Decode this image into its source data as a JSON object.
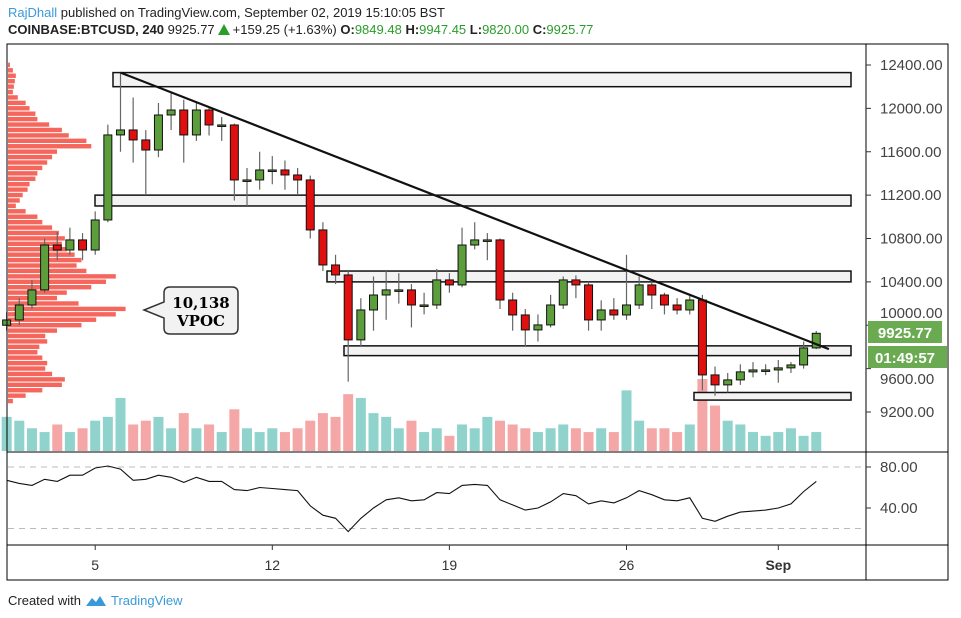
{
  "header": {
    "author": "RajDhall",
    "published_text": "published on TradingView.com, September 02, 2019 15:10:05 BST",
    "symbol": "COINBASE:BTCUSD, 240",
    "last_price": "9925.77",
    "change": "+159.25 (+1.63%)",
    "open_label": "O:",
    "open": "9849.48",
    "high_label": "H:",
    "high": "9947.45",
    "low_label": "L:",
    "low": "9820.00",
    "close_label": "C:",
    "close": "9925.77"
  },
  "footer": {
    "created_with": "Created with",
    "brand": "TradingView"
  },
  "annotation": {
    "value": "10,138",
    "label": "VPOC"
  },
  "price_badge": {
    "price": "9925.77",
    "countdown": "01:49:57"
  },
  "colors": {
    "up": "#5c9e3b",
    "down": "#e01010",
    "vol_up": "#8fd3cc",
    "vol_down": "#f5a7a7",
    "profile": "#f4564a",
    "badge": "#6aaa50",
    "brand": "#3a9ad9"
  },
  "chart_data": [
    {
      "type": "candlestick",
      "title": "",
      "y_ticks": [
        "12400.00",
        "12000.00",
        "11600.00",
        "11200.00",
        "10800.00",
        "10400.00",
        "10000.00",
        "9600.00",
        "9200.00"
      ],
      "x_ticks": [
        "5",
        "12",
        "19",
        "26",
        "Sep"
      ],
      "ylim": [
        9200,
        12400
      ],
      "grid": false,
      "candles_fields": [
        "time",
        "open",
        "high",
        "low",
        "close"
      ],
      "candles": [
        [
          "Aug 01 12:00",
          10000,
          10120,
          9950,
          10049
        ],
        [
          "Aug 02 00:00",
          10049,
          10250,
          10000,
          10187
        ],
        [
          "Aug 02 12:00",
          10187,
          10420,
          10150,
          10326
        ],
        [
          "Aug 03 00:00",
          10326,
          10800,
          10300,
          10740
        ],
        [
          "Aug 03 12:00",
          10740,
          10860,
          10600,
          10694
        ],
        [
          "Aug 04 00:00",
          10694,
          10900,
          10650,
          10787
        ],
        [
          "Aug 04 12:00",
          10787,
          10850,
          10600,
          10694
        ],
        [
          "Aug 05 00:00",
          10694,
          11050,
          10650,
          10971
        ],
        [
          "Aug 05 12:00",
          10971,
          11850,
          10950,
          11755
        ],
        [
          "Aug 06 00:00",
          11755,
          12330,
          11600,
          11801
        ],
        [
          "Aug 06 12:00",
          11801,
          12100,
          11500,
          11709
        ],
        [
          "Aug 07 00:00",
          11709,
          11800,
          11200,
          11616
        ],
        [
          "Aug 07 12:00",
          11616,
          12050,
          11550,
          11939
        ],
        [
          "Aug 08 00:00",
          11939,
          12150,
          11800,
          11985
        ],
        [
          "Aug 08 12:00",
          11985,
          12080,
          11500,
          11755
        ],
        [
          "Aug 09 00:00",
          11755,
          12050,
          11700,
          11985
        ],
        [
          "Aug 09 12:00",
          11985,
          12010,
          11750,
          11847
        ],
        [
          "Aug 10 00:00",
          11847,
          11920,
          11700,
          11847
        ],
        [
          "Aug 10 12:00",
          11847,
          11860,
          11150,
          11340
        ],
        [
          "Aug 11 00:00",
          11340,
          11450,
          11100,
          11340
        ],
        [
          "Aug 11 12:00",
          11340,
          11600,
          11250,
          11432
        ],
        [
          "Aug 12 00:00",
          11432,
          11560,
          11300,
          11432
        ],
        [
          "Aug 12 12:00",
          11432,
          11520,
          11250,
          11386
        ],
        [
          "Aug 13 00:00",
          11386,
          11450,
          11200,
          11340
        ],
        [
          "Aug 13 12:00",
          11340,
          11380,
          10800,
          10879
        ],
        [
          "Aug 14 00:00",
          10879,
          10950,
          10500,
          10556
        ],
        [
          "Aug 14 12:00",
          10556,
          10650,
          10380,
          10464
        ],
        [
          "Aug 15 00:00",
          10464,
          10500,
          9480,
          9865
        ],
        [
          "Aug 15 12:00",
          9865,
          10250,
          9800,
          10141
        ],
        [
          "Aug 16 00:00",
          10141,
          10450,
          9950,
          10279
        ],
        [
          "Aug 16 12:00",
          10279,
          10500,
          10050,
          10326
        ],
        [
          "Aug 17 00:00",
          10326,
          10480,
          10200,
          10326
        ],
        [
          "Aug 17 12:00",
          10326,
          10380,
          9980,
          10187
        ],
        [
          "Aug 18 00:00",
          10187,
          10300,
          10100,
          10187
        ],
        [
          "Aug 18 12:00",
          10187,
          10520,
          10150,
          10418
        ],
        [
          "Aug 19 00:00",
          10418,
          10480,
          10300,
          10372
        ],
        [
          "Aug 19 12:00",
          10372,
          10900,
          10350,
          10740
        ],
        [
          "Aug 20 00:00",
          10740,
          10950,
          10700,
          10787
        ],
        [
          "Aug 20 12:00",
          10787,
          10850,
          10600,
          10787
        ],
        [
          "Aug 21 00:00",
          10787,
          10800,
          10150,
          10233
        ],
        [
          "Aug 21 12:00",
          10233,
          10300,
          9950,
          10095
        ],
        [
          "Aug 22 00:00",
          10095,
          10150,
          9800,
          9957
        ],
        [
          "Aug 22 12:00",
          9957,
          10100,
          9850,
          10003
        ],
        [
          "Aug 23 00:00",
          10003,
          10280,
          9980,
          10187
        ],
        [
          "Aug 23 12:00",
          10187,
          10450,
          10150,
          10418
        ],
        [
          "Aug 24 00:00",
          10418,
          10460,
          10250,
          10372
        ],
        [
          "Aug 24 12:00",
          10372,
          10400,
          9950,
          10049
        ],
        [
          "Aug 25 00:00",
          10049,
          10230,
          9950,
          10141
        ],
        [
          "Aug 25 12:00",
          10141,
          10250,
          10050,
          10095
        ],
        [
          "Aug 26 00:00",
          10095,
          10650,
          10050,
          10187
        ],
        [
          "Aug 26 12:00",
          10187,
          10450,
          10150,
          10372
        ],
        [
          "Aug 27 00:00",
          10372,
          10420,
          10150,
          10279
        ],
        [
          "Aug 27 12:00",
          10279,
          10300,
          10100,
          10187
        ],
        [
          "Aug 28 00:00",
          10187,
          10250,
          10100,
          10141
        ],
        [
          "Aug 28 12:00",
          10141,
          10290,
          10100,
          10233
        ],
        [
          "Aug 29 00:00",
          10233,
          10280,
          9400,
          9542
        ],
        [
          "Aug 29 12:00",
          9542,
          9620,
          9350,
          9450
        ],
        [
          "Aug 30 00:00",
          9450,
          9560,
          9380,
          9496
        ],
        [
          "Aug 30 12:00",
          9496,
          9640,
          9450,
          9570
        ],
        [
          "Aug 31 00:00",
          9570,
          9660,
          9520,
          9588
        ],
        [
          "Aug 31 12:00",
          9588,
          9640,
          9540,
          9588
        ],
        [
          "Sep 01 00:00",
          9588,
          9680,
          9470,
          9607
        ],
        [
          "Sep 01 12:00",
          9607,
          9660,
          9560,
          9634
        ],
        [
          "Sep 02 00:00",
          9634,
          9850,
          9600,
          9791
        ],
        [
          "Sep 02 12:00",
          9791,
          9947.45,
          9780,
          9925.77
        ]
      ],
      "volume": [
        45,
        40,
        30,
        25,
        35,
        25,
        30,
        40,
        45,
        70,
        35,
        40,
        45,
        30,
        50,
        30,
        35,
        25,
        55,
        30,
        25,
        30,
        25,
        30,
        40,
        50,
        45,
        75,
        70,
        50,
        45,
        30,
        40,
        25,
        30,
        20,
        35,
        30,
        45,
        40,
        35,
        30,
        25,
        30,
        35,
        30,
        25,
        30,
        25,
        80,
        40,
        30,
        30,
        25,
        35,
        95,
        60,
        40,
        35,
        25,
        20,
        25,
        30,
        20,
        25
      ],
      "zones": [
        [
          12330,
          12200
        ],
        [
          11200,
          11100
        ],
        [
          10500,
          10400
        ],
        [
          9810,
          9720
        ],
        [
          9380,
          9310
        ]
      ],
      "trendline": {
        "from": [
          "Aug 06 00:00",
          12330
        ],
        "to": [
          "Sep 03 00:00",
          9780
        ]
      },
      "volume_profile_fields": [
        "price",
        "volume"
      ],
      "volume_profile": [
        [
          12400,
          2
        ],
        [
          12350,
          5
        ],
        [
          12300,
          8
        ],
        [
          12250,
          7
        ],
        [
          12200,
          6
        ],
        [
          12150,
          5
        ],
        [
          12100,
          10
        ],
        [
          12050,
          18
        ],
        [
          12000,
          22
        ],
        [
          11950,
          28
        ],
        [
          11900,
          30
        ],
        [
          11850,
          42
        ],
        [
          11800,
          55
        ],
        [
          11750,
          62
        ],
        [
          11700,
          80
        ],
        [
          11650,
          85
        ],
        [
          11600,
          50
        ],
        [
          11550,
          45
        ],
        [
          11500,
          40
        ],
        [
          11450,
          35
        ],
        [
          11400,
          30
        ],
        [
          11350,
          28
        ],
        [
          11300,
          22
        ],
        [
          11250,
          20
        ],
        [
          11200,
          15
        ],
        [
          11150,
          12
        ],
        [
          11100,
          8
        ],
        [
          11050,
          18
        ],
        [
          11000,
          30
        ],
        [
          10950,
          35
        ],
        [
          10900,
          45
        ],
        [
          10850,
          52
        ],
        [
          10800,
          58
        ],
        [
          10750,
          55
        ],
        [
          10700,
          60
        ],
        [
          10650,
          68
        ],
        [
          10600,
          75
        ],
        [
          10550,
          70
        ],
        [
          10500,
          80
        ],
        [
          10450,
          110
        ],
        [
          10400,
          100
        ],
        [
          10350,
          85
        ],
        [
          10300,
          60
        ],
        [
          10250,
          50
        ],
        [
          10200,
          72
        ],
        [
          10150,
          120
        ],
        [
          10100,
          110
        ],
        [
          10050,
          90
        ],
        [
          10000,
          75
        ],
        [
          9950,
          50
        ],
        [
          9900,
          38
        ],
        [
          9850,
          40
        ],
        [
          9800,
          32
        ],
        [
          9750,
          30
        ],
        [
          9700,
          35
        ],
        [
          9650,
          40
        ],
        [
          9600,
          38
        ],
        [
          9550,
          45
        ],
        [
          9500,
          58
        ],
        [
          9450,
          55
        ],
        [
          9400,
          35
        ],
        [
          9350,
          18
        ],
        [
          9300,
          5
        ]
      ]
    },
    {
      "type": "line",
      "title": "",
      "y_ticks": [
        "80.00",
        "40.00"
      ],
      "levels": [
        80,
        20
      ],
      "ylim": [
        10,
        90
      ],
      "values": [
        67,
        64,
        62,
        68,
        66,
        72,
        72,
        79,
        81,
        78,
        67,
        68,
        72,
        70,
        65,
        70,
        66,
        66,
        58,
        57,
        60,
        59,
        58,
        57,
        42,
        33,
        30,
        17,
        30,
        40,
        48,
        50,
        47,
        48,
        55,
        54,
        62,
        63,
        62,
        48,
        43,
        38,
        40,
        46,
        54,
        52,
        44,
        47,
        45,
        50,
        57,
        53,
        48,
        47,
        50,
        30,
        27,
        32,
        36,
        37,
        38,
        40,
        44,
        56,
        66
      ]
    }
  ]
}
